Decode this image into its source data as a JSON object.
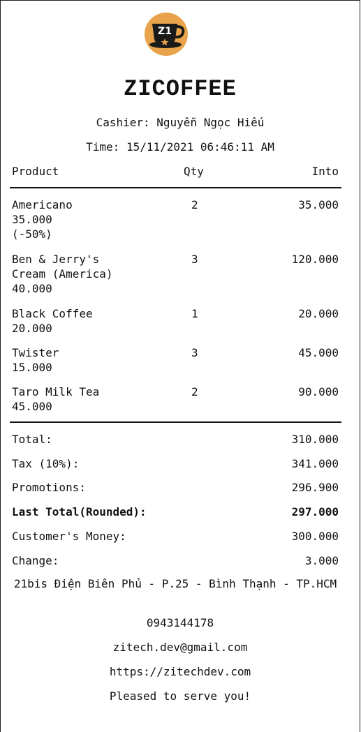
{
  "header": {
    "logo_text": "Z1",
    "brand": "ZICOFFEE",
    "cashier": "Cashier: Nguyễn Ngọc Hiếu",
    "time": "Time: 15/11/2021 06:46:11 AM"
  },
  "columns": {
    "product": "Product",
    "qty": "Qty",
    "into": "Into"
  },
  "items": [
    {
      "name": "Americano",
      "price": "35.000",
      "note": "(-50%)",
      "qty": "2",
      "into": "35.000"
    },
    {
      "name": "Ben & Jerry's",
      "name2": "Cream (America)",
      "price": "40.000",
      "qty": "3",
      "into": "120.000"
    },
    {
      "name": "Black Coffee",
      "price": "20.000",
      "qty": "1",
      "into": "20.000"
    },
    {
      "name": "Twister",
      "price": "15.000",
      "qty": "3",
      "into": "45.000"
    },
    {
      "name": "Taro Milk Tea",
      "price": "45.000",
      "qty": "2",
      "into": "90.000"
    }
  ],
  "summary": [
    {
      "label": "Total:",
      "value": "310.000"
    },
    {
      "label": "Tax (10%):",
      "value": "341.000"
    },
    {
      "label": "Promotions:",
      "value": "296.900"
    },
    {
      "label": "Last Total(Rounded):",
      "value": "297.000"
    },
    {
      "label": "Customer's Money:",
      "value": "300.000"
    },
    {
      "label": "Change:",
      "value": "3.000"
    }
  ],
  "footer": {
    "address": "21bis Điện Biên Phủ - P.25 - Bình Thạnh - TP.HCM",
    "phone": "0943144178",
    "email": "zitech.dev@gmail.com",
    "website": "https://zitechdev.com",
    "thanks": "Pleased to serve you!"
  },
  "colors": {
    "logo_bg": "#e9a34a",
    "logo_cup": "#1a1a1a",
    "text": "#111111"
  }
}
